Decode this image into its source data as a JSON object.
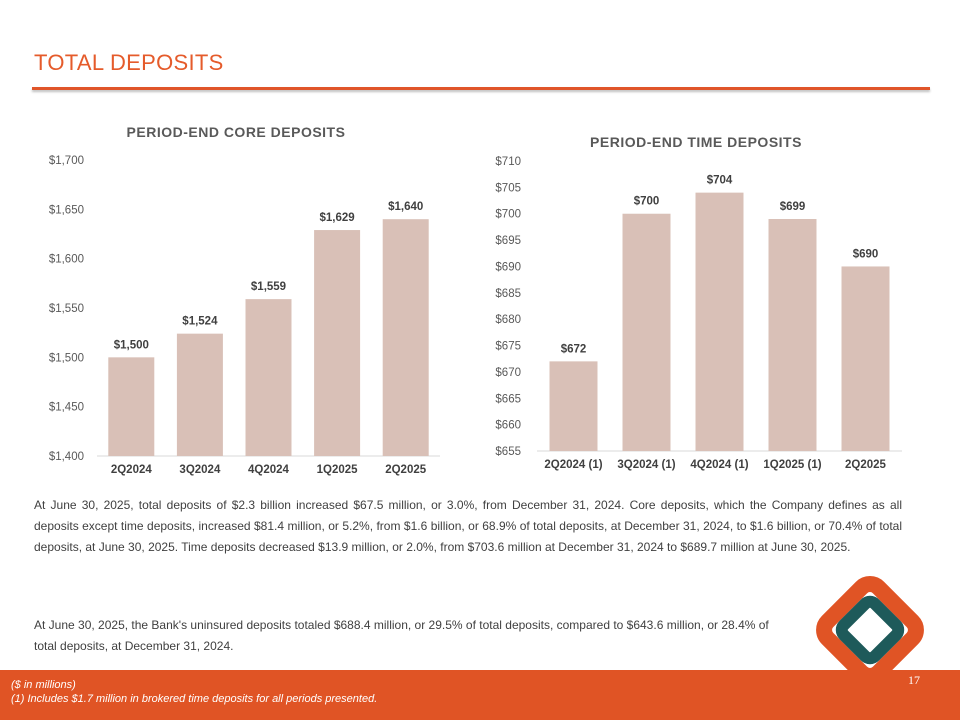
{
  "title": "TOTAL DEPOSITS",
  "colors": {
    "accent": "#e05425",
    "bar": "#d9c0b7",
    "logo_orange": "#e05425",
    "logo_teal": "#1e5a5a"
  },
  "chart_data": [
    {
      "type": "bar",
      "title": "PERIOD-END CORE DEPOSITS",
      "categories": [
        "2Q2024",
        "3Q2024",
        "4Q2024",
        "1Q2025",
        "2Q2025"
      ],
      "values": [
        1500,
        1524,
        1559,
        1629,
        1640
      ],
      "data_labels": [
        "$1,500",
        "$1,524",
        "$1,559",
        "$1,629",
        "$1,640"
      ],
      "yticks": [
        "$1,400",
        "$1,450",
        "$1,500",
        "$1,550",
        "$1,600",
        "$1,650",
        "$1,700"
      ],
      "ylim": [
        1400,
        1700
      ],
      "grid": false,
      "xlabel": "",
      "ylabel": ""
    },
    {
      "type": "bar",
      "title": "PERIOD-END TIME DEPOSITS",
      "categories": [
        "2Q2024 (1)",
        "3Q2024 (1)",
        "4Q2024 (1)",
        "1Q2025 (1)",
        "2Q2025"
      ],
      "values": [
        672,
        700,
        704,
        699,
        690
      ],
      "data_labels": [
        "$672",
        "$700",
        "$704",
        "$699",
        "$690"
      ],
      "yticks": [
        "$655",
        "$660",
        "$665",
        "$670",
        "$675",
        "$680",
        "$685",
        "$690",
        "$695",
        "$700",
        "$705",
        "$710"
      ],
      "ylim": [
        655,
        710
      ],
      "grid": false,
      "xlabel": "",
      "ylabel": ""
    }
  ],
  "body": {
    "para1": "At June 30, 2025, total deposits of $2.3 billion increased $67.5 million, or 3.0%, from December 31, 2024. Core deposits, which the Company defines as all deposits except time deposits, increased $81.4 million, or 5.2%, from $1.6 billion, or 68.9% of total deposits, at December 31, 2024, to $1.6 billion, or 70.4% of total deposits, at June 30, 2025. Time deposits decreased $13.9 million, or 2.0%, from $703.6 million at December 31, 2024 to $689.7 million at June 30, 2025.",
    "para2": "At June 30, 2025, the Bank's uninsured deposits totaled $688.4 million, or 29.5% of total deposits, compared to $643.6 million, or 28.4% of total deposits, at December 31, 2024."
  },
  "footer": {
    "note1": "($ in millions)",
    "note2": "(1) Includes $1.7 million in brokered time deposits for all periods presented.",
    "page_number": "17"
  },
  "logo": {
    "icon": "diamond-logo-icon"
  }
}
